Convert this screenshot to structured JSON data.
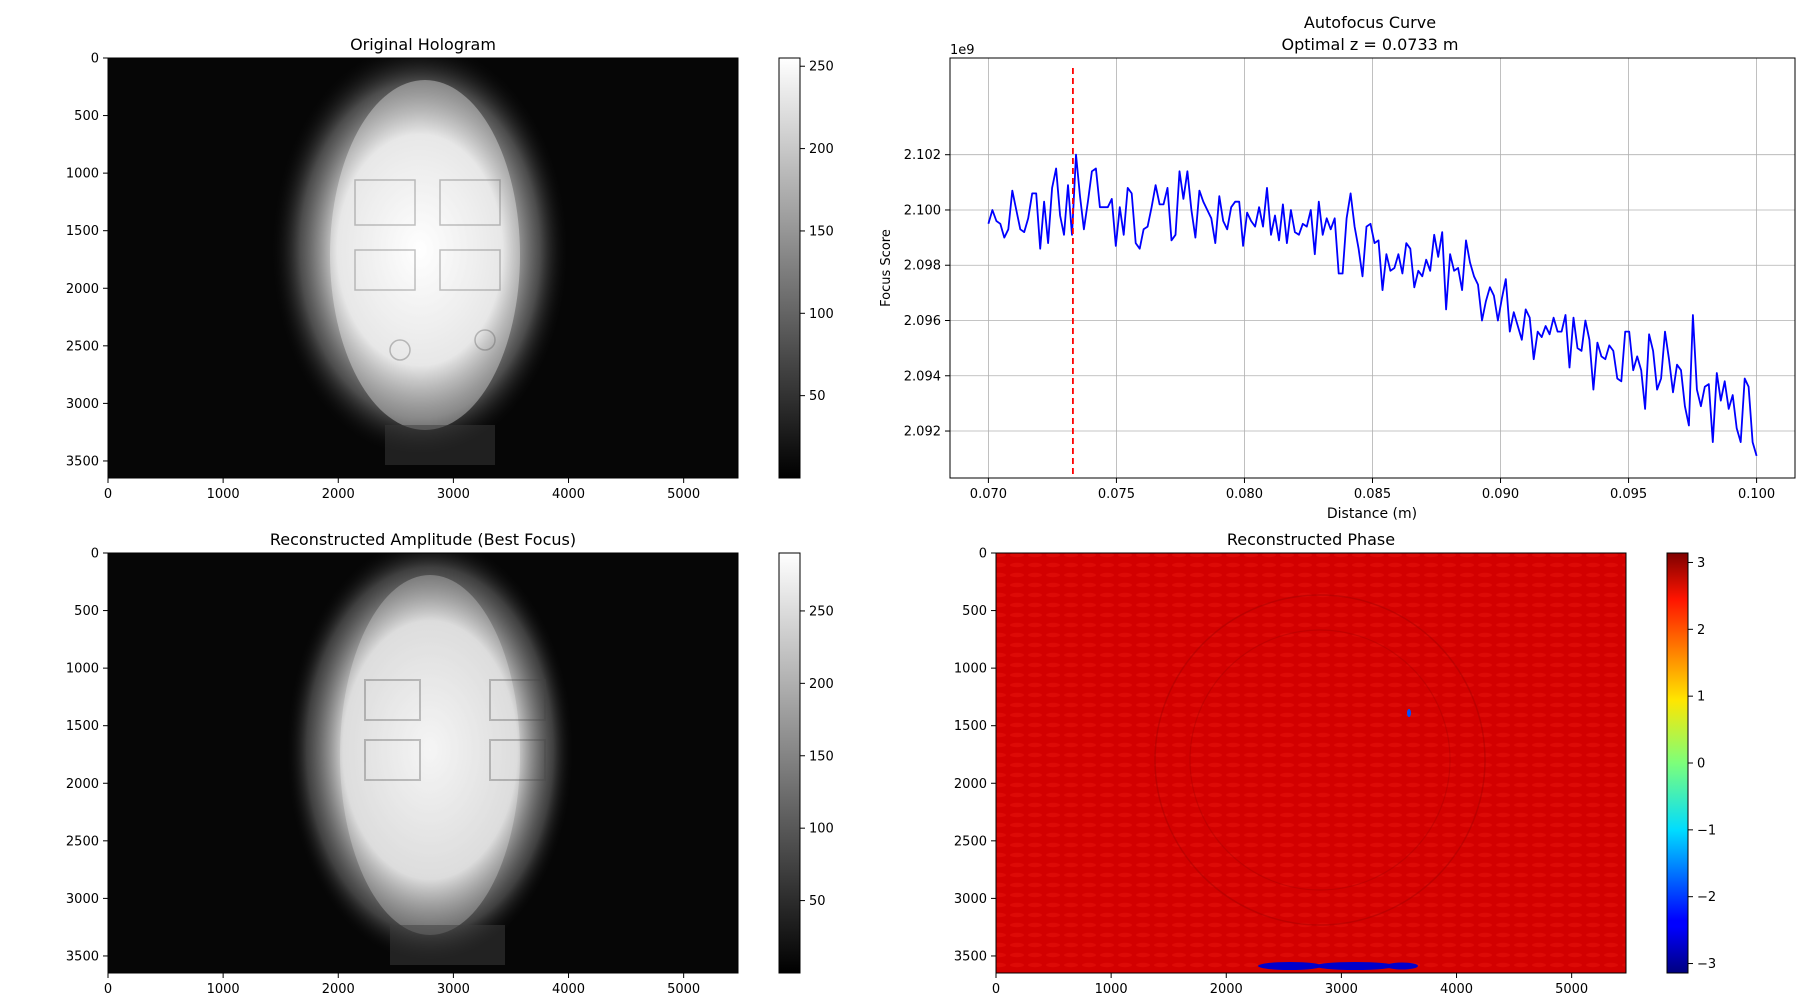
{
  "chart_data": [
    {
      "type": "heatmap",
      "title": "Original Hologram",
      "colormap": "gray",
      "x_ticks": [
        0,
        1000,
        2000,
        3000,
        4000,
        5000
      ],
      "y_ticks": [
        0,
        500,
        1000,
        1500,
        2000,
        2500,
        3000,
        3500
      ],
      "xlim": [
        0,
        5472
      ],
      "ylim": [
        3648,
        0
      ],
      "colorbar": {
        "ticks": [
          50,
          100,
          150,
          200,
          250
        ],
        "range": [
          0,
          255
        ]
      }
    },
    {
      "type": "line",
      "title_line1": "Autofocus Curve",
      "title_line2": "Optimal z = 0.0733 m",
      "xlabel": "Distance (m)",
      "ylabel": "Focus Score",
      "y_offset_label": "1e9",
      "x_ticks": [
        0.07,
        0.075,
        0.08,
        0.085,
        0.09,
        0.095,
        0.1
      ],
      "y_ticks": [
        2.092,
        2.094,
        2.096,
        2.098,
        2.1,
        2.102
      ],
      "xlim": [
        0.0685,
        0.1015
      ],
      "ylim": [
        2.0903,
        2.1055
      ],
      "grid": true,
      "series": [
        {
          "color": "#0000ff",
          "x_start": 0.07,
          "x_end": 0.1,
          "values": [
            2.0995,
            2.1,
            2.0996,
            2.0995,
            2.099,
            2.0993,
            2.1007,
            2.1,
            2.0993,
            2.0992,
            2.0997,
            2.1006,
            2.1006,
            2.0986,
            2.1003,
            2.0988,
            2.1008,
            2.1015,
            2.0998,
            2.0991,
            2.1009,
            2.0991,
            2.102,
            2.1005,
            2.0993,
            2.1003,
            2.1014,
            2.1015,
            2.1001,
            2.1001,
            2.1001,
            2.1004,
            2.0987,
            2.1001,
            2.0991,
            2.1008,
            2.1006,
            2.0988,
            2.0986,
            2.0993,
            2.0994,
            2.1001,
            2.1009,
            2.1002,
            2.1002,
            2.1008,
            2.0989,
            2.0991,
            2.1014,
            2.1004,
            2.1014,
            2.1,
            2.099,
            2.1007,
            2.1003,
            2.1,
            2.0997,
            2.0988,
            2.1005,
            2.0996,
            2.0993,
            2.1001,
            2.1003,
            2.1003,
            2.0987,
            2.0999,
            2.0996,
            2.0994,
            2.1001,
            2.0994,
            2.1008,
            2.0991,
            2.0998,
            2.0989,
            2.1002,
            2.0988,
            2.1,
            2.0992,
            2.0991,
            2.0995,
            2.0994,
            2.1,
            2.0984,
            2.1003,
            2.0991,
            2.0997,
            2.0993,
            2.0997,
            2.0977,
            2.0977,
            2.0997,
            2.1006,
            2.0994,
            2.0986,
            2.0976,
            2.0994,
            2.0995,
            2.0988,
            2.0989,
            2.0971,
            2.0984,
            2.0978,
            2.0979,
            2.0984,
            2.0977,
            2.0988,
            2.0986,
            2.0972,
            2.0978,
            2.0976,
            2.0982,
            2.0978,
            2.0991,
            2.0983,
            2.0992,
            2.0964,
            2.0984,
            2.0978,
            2.0979,
            2.0971,
            2.0989,
            2.0981,
            2.0976,
            2.0973,
            2.096,
            2.0967,
            2.0972,
            2.0969,
            2.096,
            2.0968,
            2.0975,
            2.0956,
            2.0963,
            2.0958,
            2.0953,
            2.0964,
            2.0961,
            2.0946,
            2.0956,
            2.0954,
            2.0958,
            2.0955,
            2.0961,
            2.0956,
            2.0956,
            2.0962,
            2.0943,
            2.0961,
            2.095,
            2.0949,
            2.096,
            2.0953,
            2.0935,
            2.0952,
            2.0947,
            2.0946,
            2.0951,
            2.0949,
            2.0939,
            2.0938,
            2.0956,
            2.0956,
            2.0942,
            2.0947,
            2.0942,
            2.0928,
            2.0955,
            2.0949,
            2.0935,
            2.0939,
            2.0956,
            2.0946,
            2.0934,
            2.0944,
            2.0942,
            2.0929,
            2.0922,
            2.0962,
            2.0935,
            2.0929,
            2.0936,
            2.0937,
            2.0916,
            2.0941,
            2.0931,
            2.0938,
            2.0928,
            2.0933,
            2.0921,
            2.0916,
            2.0939,
            2.0936,
            2.0916,
            2.0911
          ]
        }
      ],
      "annotations": [
        {
          "type": "vline",
          "x": 0.0733,
          "color": "#ff0000",
          "style": "dashed"
        }
      ]
    },
    {
      "type": "heatmap",
      "title": "Reconstructed Amplitude (Best Focus)",
      "colormap": "gray",
      "x_ticks": [
        0,
        1000,
        2000,
        3000,
        4000,
        5000
      ],
      "y_ticks": [
        0,
        500,
        1000,
        1500,
        2000,
        2500,
        3000,
        3500
      ],
      "xlim": [
        0,
        5472
      ],
      "ylim": [
        3648,
        0
      ],
      "colorbar": {
        "ticks": [
          50,
          100,
          150,
          200,
          250
        ],
        "range": [
          0,
          290
        ]
      }
    },
    {
      "type": "heatmap",
      "title": "Reconstructed Phase",
      "colormap": "jet",
      "x_ticks": [
        0,
        1000,
        2000,
        3000,
        4000,
        5000
      ],
      "y_ticks": [
        0,
        500,
        1000,
        1500,
        2000,
        2500,
        3000,
        3500
      ],
      "xlim": [
        0,
        5472
      ],
      "ylim": [
        3648,
        0
      ],
      "colorbar": {
        "ticks": [
          -3,
          -2,
          -1,
          0,
          1,
          2,
          3
        ],
        "range": [
          -3.1416,
          3.1416
        ]
      }
    }
  ]
}
